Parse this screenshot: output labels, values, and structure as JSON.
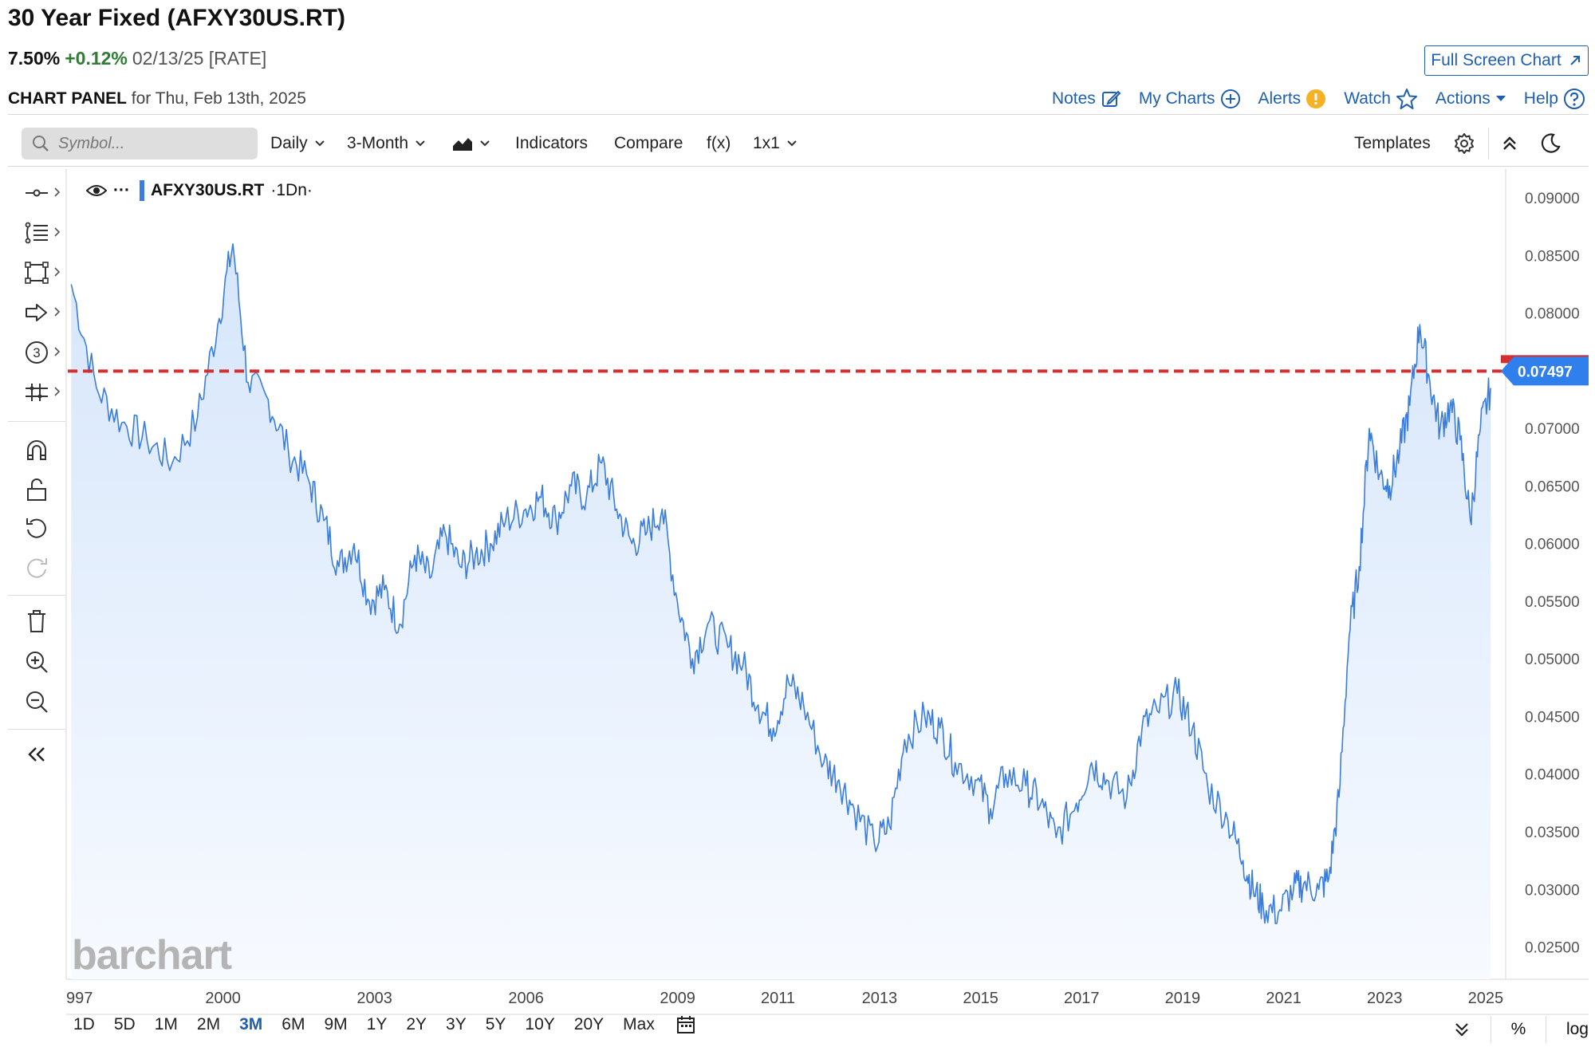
{
  "header": {
    "title": "30 Year Fixed (AFXY30US.RT)",
    "last": "7.50%",
    "change": "+0.12%",
    "date_label": "02/13/25 [RATE]",
    "full_screen_label": "Full Screen Chart"
  },
  "panel": {
    "label": "CHART PANEL",
    "for_text": "for Thu, Feb 13th, 2025"
  },
  "top_links": {
    "notes": "Notes",
    "my_charts": "My Charts",
    "alerts": "Alerts",
    "watch": "Watch",
    "actions": "Actions",
    "help": "Help"
  },
  "toolbar": {
    "search_placeholder": "Symbol...",
    "interval": "Daily",
    "period": "3-Month",
    "indicators": "Indicators",
    "compare": "Compare",
    "fx": "f(x)",
    "layout": "1x1",
    "templates": "Templates"
  },
  "legend": {
    "symbol": "AFXY30US.RT",
    "interval": "·1Dn·",
    "more": "···"
  },
  "watermark": "barchart",
  "range_buttons": [
    "1D",
    "5D",
    "1M",
    "2M",
    "3M",
    "6M",
    "9M",
    "1Y",
    "2Y",
    "3Y",
    "5Y",
    "10Y",
    "20Y",
    "Max"
  ],
  "active_range": "3M",
  "bottom_right": {
    "percent": "%",
    "log": "log"
  },
  "colors": {
    "line": "#3b7ddd",
    "fill_top": "#d6e6fb",
    "price_line": "#d32f2f",
    "price_tag": "#2f80ed",
    "link": "#1f5fb0",
    "positive": "#2e7d32"
  },
  "icons": [
    "search-icon",
    "chevron-down-icon",
    "chart-type-icon",
    "gear-icon",
    "collapse-up-icon",
    "moon-icon",
    "edit-icon",
    "plus-circle-icon",
    "alert-icon",
    "star-icon",
    "help-icon",
    "external-link-icon",
    "eye-icon",
    "calendar-icon",
    "double-chevron-down-icon"
  ],
  "chart_data": {
    "type": "area",
    "series": [
      {
        "name": "AFXY30US.RT",
        "x": [
          1997.0,
          1997.5,
          1998.0,
          1998.5,
          1999.0,
          1999.5,
          1999.9,
          2000.2,
          2000.5,
          2000.9,
          2001.3,
          2001.7,
          2002.0,
          2002.3,
          2002.6,
          2002.9,
          2003.2,
          2003.5,
          2003.8,
          2004.1,
          2004.4,
          2004.7,
          2005.0,
          2005.3,
          2005.6,
          2006.0,
          2006.3,
          2006.6,
          2006.9,
          2007.2,
          2007.5,
          2007.8,
          2008.1,
          2008.4,
          2008.7,
          2009.0,
          2009.3,
          2009.6,
          2010.0,
          2010.3,
          2010.6,
          2010.9,
          2011.2,
          2011.5,
          2011.9,
          2012.2,
          2012.5,
          2012.9,
          2013.2,
          2013.5,
          2013.9,
          2014.2,
          2014.5,
          2014.9,
          2015.2,
          2015.5,
          2015.9,
          2016.2,
          2016.5,
          2016.9,
          2017.2,
          2017.5,
          2017.9,
          2018.2,
          2018.5,
          2018.9,
          2019.2,
          2019.5,
          2019.9,
          2020.2,
          2020.4,
          2020.6,
          2020.9,
          2021.2,
          2021.4,
          2021.7,
          2021.9,
          2022.1,
          2022.3,
          2022.5,
          2022.7,
          2022.9,
          2023.1,
          2023.3,
          2023.5,
          2023.7,
          2023.9,
          2024.1,
          2024.3,
          2024.5,
          2024.7,
          2024.9,
          2025.1
        ],
        "values": [
          0.0825,
          0.0735,
          0.0705,
          0.069,
          0.067,
          0.071,
          0.079,
          0.086,
          0.074,
          0.0725,
          0.068,
          0.0655,
          0.062,
          0.058,
          0.06,
          0.055,
          0.056,
          0.053,
          0.059,
          0.057,
          0.061,
          0.058,
          0.059,
          0.06,
          0.062,
          0.063,
          0.064,
          0.062,
          0.065,
          0.064,
          0.067,
          0.063,
          0.06,
          0.061,
          0.063,
          0.055,
          0.05,
          0.053,
          0.051,
          0.0495,
          0.046,
          0.044,
          0.048,
          0.046,
          0.041,
          0.0395,
          0.037,
          0.034,
          0.0355,
          0.043,
          0.045,
          0.044,
          0.041,
          0.0395,
          0.037,
          0.04,
          0.039,
          0.0375,
          0.0345,
          0.0375,
          0.041,
          0.0395,
          0.038,
          0.044,
          0.0455,
          0.047,
          0.044,
          0.039,
          0.036,
          0.0325,
          0.03,
          0.0285,
          0.028,
          0.03,
          0.0305,
          0.03,
          0.031,
          0.038,
          0.052,
          0.058,
          0.07,
          0.066,
          0.065,
          0.068,
          0.072,
          0.079,
          0.074,
          0.07,
          0.072,
          0.069,
          0.062,
          0.07,
          0.0735
        ]
      }
    ],
    "xticks": [
      "997",
      "2000",
      "2003",
      "2006",
      "2009",
      "2011",
      "2013",
      "2015",
      "2017",
      "2019",
      "2021",
      "2023",
      "2025"
    ],
    "yticks": [
      "0.09000",
      "0.08500",
      "0.08000",
      "0.07500",
      "0.07000",
      "0.06500",
      "0.06000",
      "0.05500",
      "0.05000",
      "0.04500",
      "0.04000",
      "0.03500",
      "0.03000",
      "0.02500"
    ],
    "ylim": [
      0.0222,
      0.0925
    ],
    "last_value_label": "0.07497",
    "last_value": 0.07497,
    "scale": "linear",
    "grid": false
  }
}
